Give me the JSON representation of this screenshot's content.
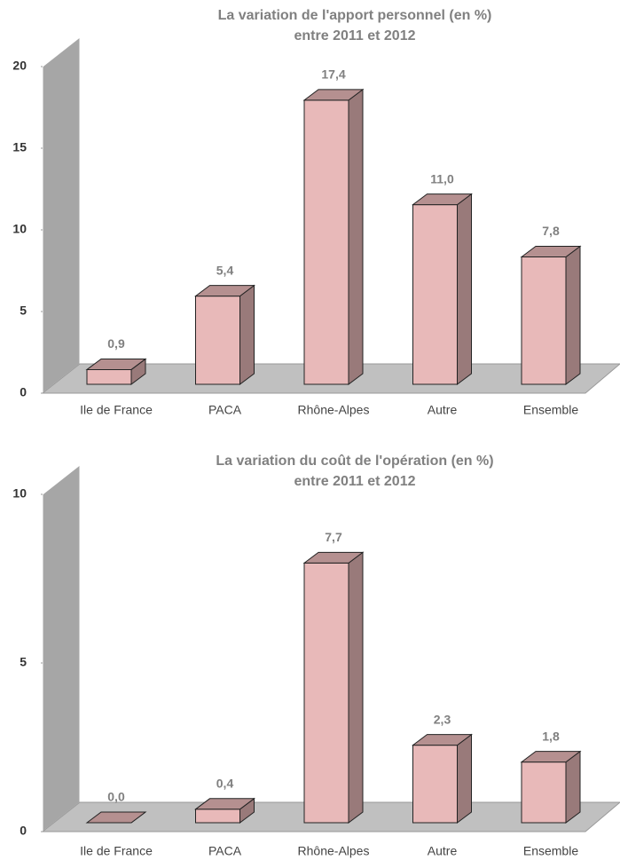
{
  "chart_data": [
    {
      "type": "bar",
      "title": [
        "La variation de l'apport personnel (en %)",
        "entre 2011 et 2012"
      ],
      "categories": [
        "Ile de France",
        "PACA",
        "Rhône-Alpes",
        "Autre",
        "Ensemble"
      ],
      "values": [
        0.9,
        5.4,
        17.4,
        11.0,
        7.8
      ],
      "value_labels": [
        "0,9",
        "5,4",
        "17,4",
        "11,0",
        "7,8"
      ],
      "color": "#e8b9b9",
      "ylim": [
        0,
        20
      ],
      "yticks": [
        0,
        5,
        10,
        15,
        20
      ]
    },
    {
      "type": "bar",
      "title": [
        "La variation du coût de l'opération (en %)",
        "entre 2011 et 2012"
      ],
      "categories": [
        "Ile de France",
        "PACA",
        "Rhône-Alpes",
        "Autre",
        "Ensemble"
      ],
      "values": [
        0.0,
        0.4,
        7.7,
        2.3,
        1.8
      ],
      "value_labels": [
        "0,0",
        "0,4",
        "7,7",
        "2,3",
        "1,8"
      ],
      "color": "#e8b9b9",
      "ylim": [
        0,
        10
      ],
      "yticks": [
        0,
        5,
        10
      ]
    }
  ]
}
